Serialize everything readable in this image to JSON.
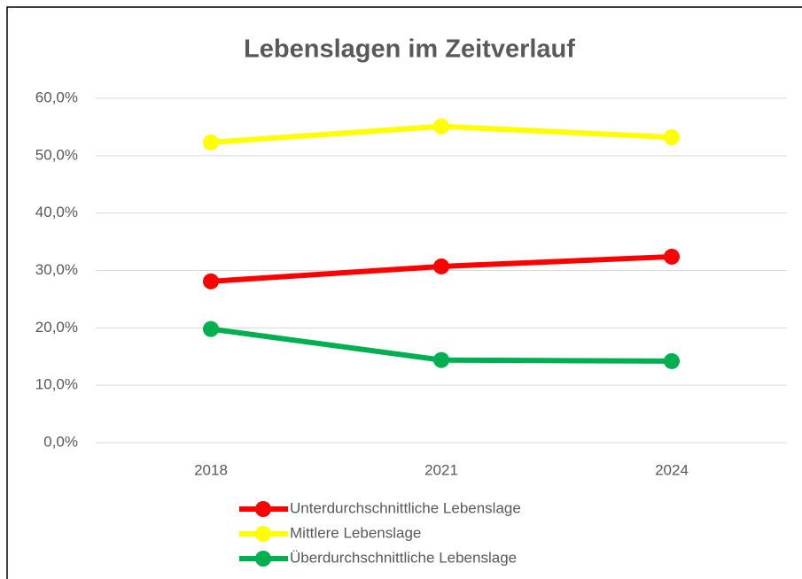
{
  "chart_data": {
    "type": "line",
    "title": "Lebenslagen im Zeitverlauf",
    "categories": [
      "2018",
      "2021",
      "2024"
    ],
    "series": [
      {
        "name": "Unterdurchschnittliche Lebenslage",
        "color": "#ff0000",
        "values": [
          28.1,
          30.7,
          32.4
        ]
      },
      {
        "name": "Mittlere Lebenslage",
        "color": "#ffff00",
        "values": [
          52.3,
          55.1,
          53.2
        ]
      },
      {
        "name": "Überdurchschnittliche Lebenslage",
        "color": "#00b050",
        "values": [
          19.8,
          14.4,
          14.2
        ]
      }
    ],
    "ylim": [
      0,
      60
    ],
    "yticks": [
      {
        "value": 0,
        "label": "0,0%"
      },
      {
        "value": 10,
        "label": "10,0%"
      },
      {
        "value": 20,
        "label": "20,0%"
      },
      {
        "value": 30,
        "label": "30,0%"
      },
      {
        "value": 40,
        "label": "40,0%"
      },
      {
        "value": 50,
        "label": "50,0%"
      },
      {
        "value": 60,
        "label": "60,0%"
      }
    ],
    "grid": true,
    "legend": "bottom"
  }
}
